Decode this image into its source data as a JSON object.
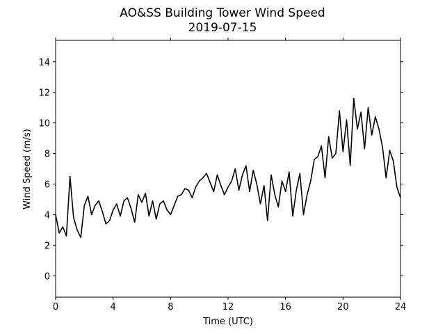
{
  "chart_data": {
    "type": "line",
    "title": "AO&SS Building Tower Wind Speed",
    "subtitle": "2019-07-15",
    "xlabel": "Time (UTC)",
    "ylabel": "Wind Speed (m/s)",
    "xlim": [
      0,
      24
    ],
    "ylim": [
      -1.4,
      15.4
    ],
    "x_ticks": [
      0,
      4,
      8,
      12,
      16,
      20,
      24
    ],
    "y_ticks": [
      0,
      2,
      4,
      6,
      8,
      10,
      12,
      14
    ],
    "grid": false,
    "legend": "none",
    "line_color": "#000000",
    "series": [
      {
        "x": [
          0.0,
          0.25,
          0.5,
          0.75,
          1.0,
          1.25,
          1.5,
          1.75,
          2.0,
          2.25,
          2.5,
          2.75,
          3.0,
          3.25,
          3.5,
          3.75,
          4.0,
          4.25,
          4.5,
          4.75,
          5.0,
          5.25,
          5.5,
          5.75,
          6.0,
          6.25,
          6.5,
          6.75,
          7.0,
          7.25,
          7.5,
          7.75,
          8.0,
          8.25,
          8.5,
          8.75,
          9.0,
          9.25,
          9.5,
          9.75,
          10.0,
          10.25,
          10.5,
          10.75,
          11.0,
          11.25,
          11.5,
          11.75,
          12.0,
          12.25,
          12.5,
          12.75,
          13.0,
          13.25,
          13.5,
          13.75,
          14.0,
          14.25,
          14.5,
          14.75,
          15.0,
          15.25,
          15.5,
          15.75,
          16.0,
          16.25,
          16.5,
          16.75,
          17.0,
          17.25,
          17.5,
          17.75,
          18.0,
          18.25,
          18.5,
          18.75,
          19.0,
          19.25,
          19.5,
          19.75,
          20.0,
          20.25,
          20.5,
          20.75,
          21.0,
          21.25,
          21.5,
          21.75,
          22.0,
          22.25,
          22.5,
          22.75,
          23.0,
          23.25,
          23.5,
          23.75,
          24.0
        ],
        "values": [
          4.0,
          2.8,
          3.2,
          2.6,
          6.5,
          3.8,
          3.0,
          2.5,
          4.6,
          5.2,
          4.0,
          4.6,
          4.9,
          4.2,
          3.4,
          3.6,
          4.3,
          4.7,
          3.9,
          4.9,
          5.1,
          4.4,
          3.5,
          5.3,
          4.8,
          5.4,
          3.9,
          4.9,
          3.7,
          4.7,
          4.9,
          4.3,
          4.0,
          4.6,
          5.2,
          5.3,
          5.7,
          5.6,
          5.1,
          5.8,
          6.2,
          6.4,
          6.7,
          6.1,
          5.5,
          6.6,
          5.9,
          5.3,
          5.8,
          6.2,
          7.0,
          5.6,
          6.6,
          7.2,
          5.5,
          6.9,
          6.0,
          4.7,
          5.9,
          3.6,
          6.6,
          5.3,
          4.5,
          6.2,
          5.5,
          6.8,
          3.9,
          5.6,
          6.7,
          4.0,
          5.3,
          6.2,
          7.6,
          7.8,
          8.5,
          6.4,
          9.1,
          7.7,
          8.0,
          10.8,
          8.1,
          10.2,
          7.2,
          11.6,
          9.6,
          10.7,
          8.3,
          11.0,
          9.2,
          10.4,
          9.6,
          8.4,
          6.4,
          8.2,
          7.5,
          5.8,
          5.1
        ]
      }
    ]
  }
}
